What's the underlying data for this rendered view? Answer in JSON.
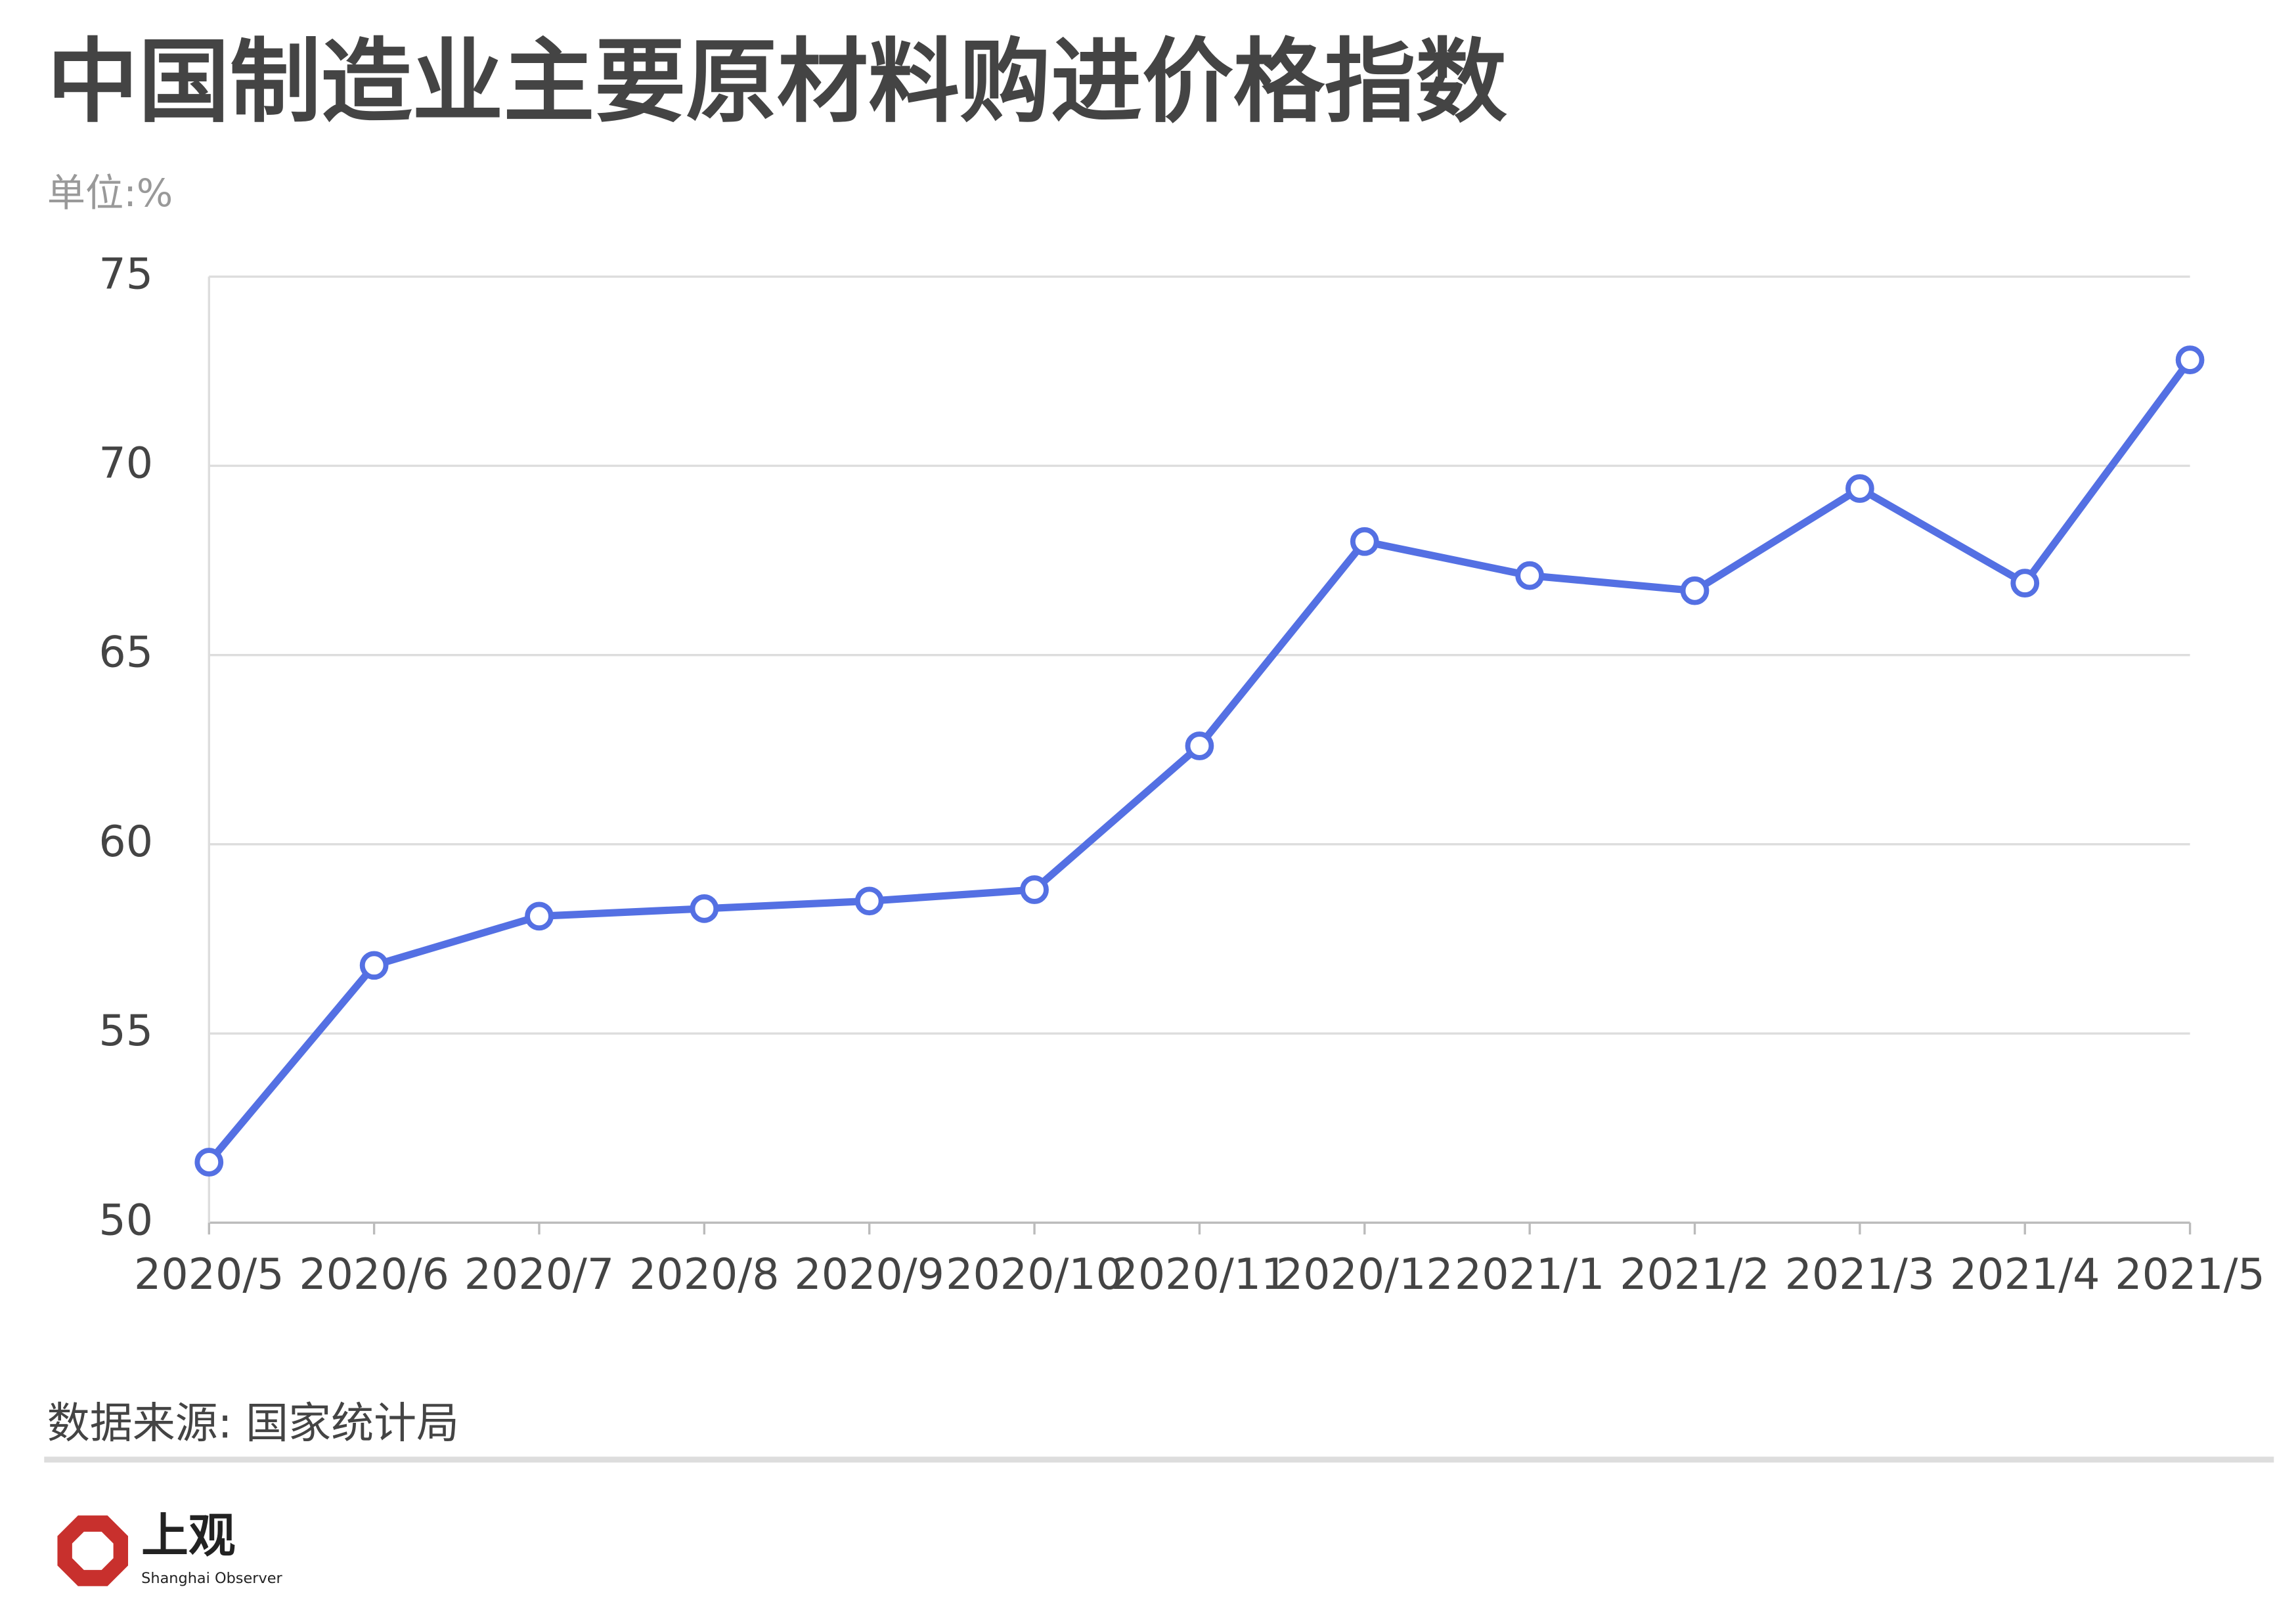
{
  "chart_data": {
    "type": "line",
    "title": "中国制造业主要原材料购进价格指数",
    "ylabel": "单位:%",
    "source": "数据来源: 国家统计局",
    "categories": [
      "2020/5",
      "2020/6",
      "2020/7",
      "2020/8",
      "2020/9",
      "2020/10",
      "2020/11",
      "2020/12",
      "2021/1",
      "2021/2",
      "2021/3",
      "2021/4",
      "2021/5"
    ],
    "series": [
      {
        "color": "#5470e3",
        "values": [
          51.6,
          56.8,
          58.1,
          58.3,
          58.5,
          58.8,
          62.6,
          68.0,
          67.1,
          66.7,
          69.4,
          66.9,
          72.8
        ]
      }
    ],
    "ylim": [
      50,
      75
    ],
    "yticks": [
      50,
      55,
      60,
      65,
      70,
      75
    ],
    "grid": true
  },
  "logo": {
    "name": "上观",
    "tagline": "Shanghai Observer"
  }
}
